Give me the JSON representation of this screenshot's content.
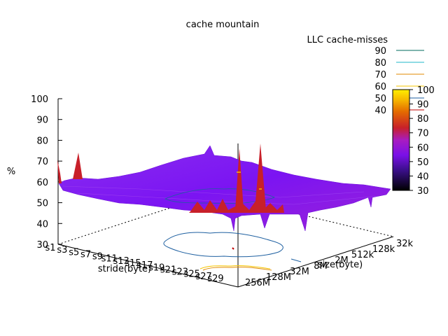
{
  "chart_data": {
    "type": "surface3d",
    "title": "cache mountain",
    "zlabel": "%",
    "xlabel": "stride(byte)",
    "ylabel": "size(byte)",
    "zlim": [
      30,
      100
    ],
    "z_ticks": [
      "30",
      "40",
      "50",
      "60",
      "70",
      "80",
      "90",
      "100"
    ],
    "x_ticks": [
      "s1",
      "s3",
      "s5",
      "s7",
      "s9",
      "s11",
      "s13",
      "s15",
      "s17",
      "s19",
      "s21",
      "s23",
      "s25",
      "s27",
      "s29"
    ],
    "y_ticks": [
      "32k",
      "128k",
      "512k",
      "2M",
      "8M",
      "32M",
      "128M",
      "256M"
    ],
    "legend_title": "LLC cache-misses",
    "contour_levels": [
      {
        "label": "90",
        "color": "#006b5d"
      },
      {
        "label": "80",
        "color": "#1fb7c8"
      },
      {
        "label": "70",
        "color": "#e08a00"
      },
      {
        "label": "60",
        "color": "#f5c400"
      },
      {
        "label": "50",
        "color": "#1d5fa0"
      },
      {
        "label": "40",
        "color": "#c00000"
      }
    ],
    "colorbar": {
      "range": [
        30,
        100
      ],
      "ticks": [
        "30",
        "40",
        "50",
        "60",
        "70",
        "80",
        "90",
        "100"
      ]
    },
    "surface_level_typical": 57,
    "peaks": [
      {
        "x": "s1",
        "y": "256M",
        "z": 72
      },
      {
        "x": "s11",
        "y": "512k",
        "z": 72
      },
      {
        "x": "s31",
        "y": "8M",
        "z": 83
      },
      {
        "x": "s31",
        "y": "2M",
        "z": 83
      },
      {
        "x": "s23",
        "y": "128M",
        "z": 65
      }
    ]
  }
}
